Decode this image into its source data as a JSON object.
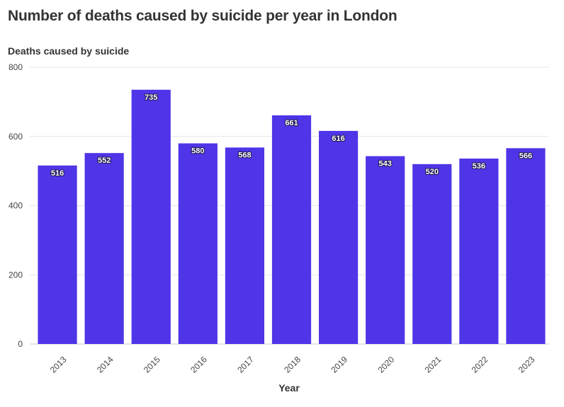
{
  "page": {
    "title": "Number of deaths caused by suicide per year in London"
  },
  "chart_data": {
    "type": "bar",
    "title": "Number of deaths caused by suicide per year in London",
    "ylabel": "Deaths caused by suicide",
    "xlabel": "Year",
    "categories": [
      "2013",
      "2014",
      "2015",
      "2016",
      "2017",
      "2018",
      "2019",
      "2020",
      "2021",
      "2022",
      "2023"
    ],
    "values": [
      516,
      552,
      735,
      580,
      568,
      661,
      616,
      543,
      520,
      536,
      566
    ],
    "ylim": [
      0,
      800
    ],
    "yticks": [
      0,
      200,
      400,
      600,
      800
    ],
    "grid": true,
    "legend": "none",
    "data_labels": true,
    "bar_color": "#4f35e8",
    "grid_color": "#e6e6e6",
    "label_color": "#ffffff"
  }
}
